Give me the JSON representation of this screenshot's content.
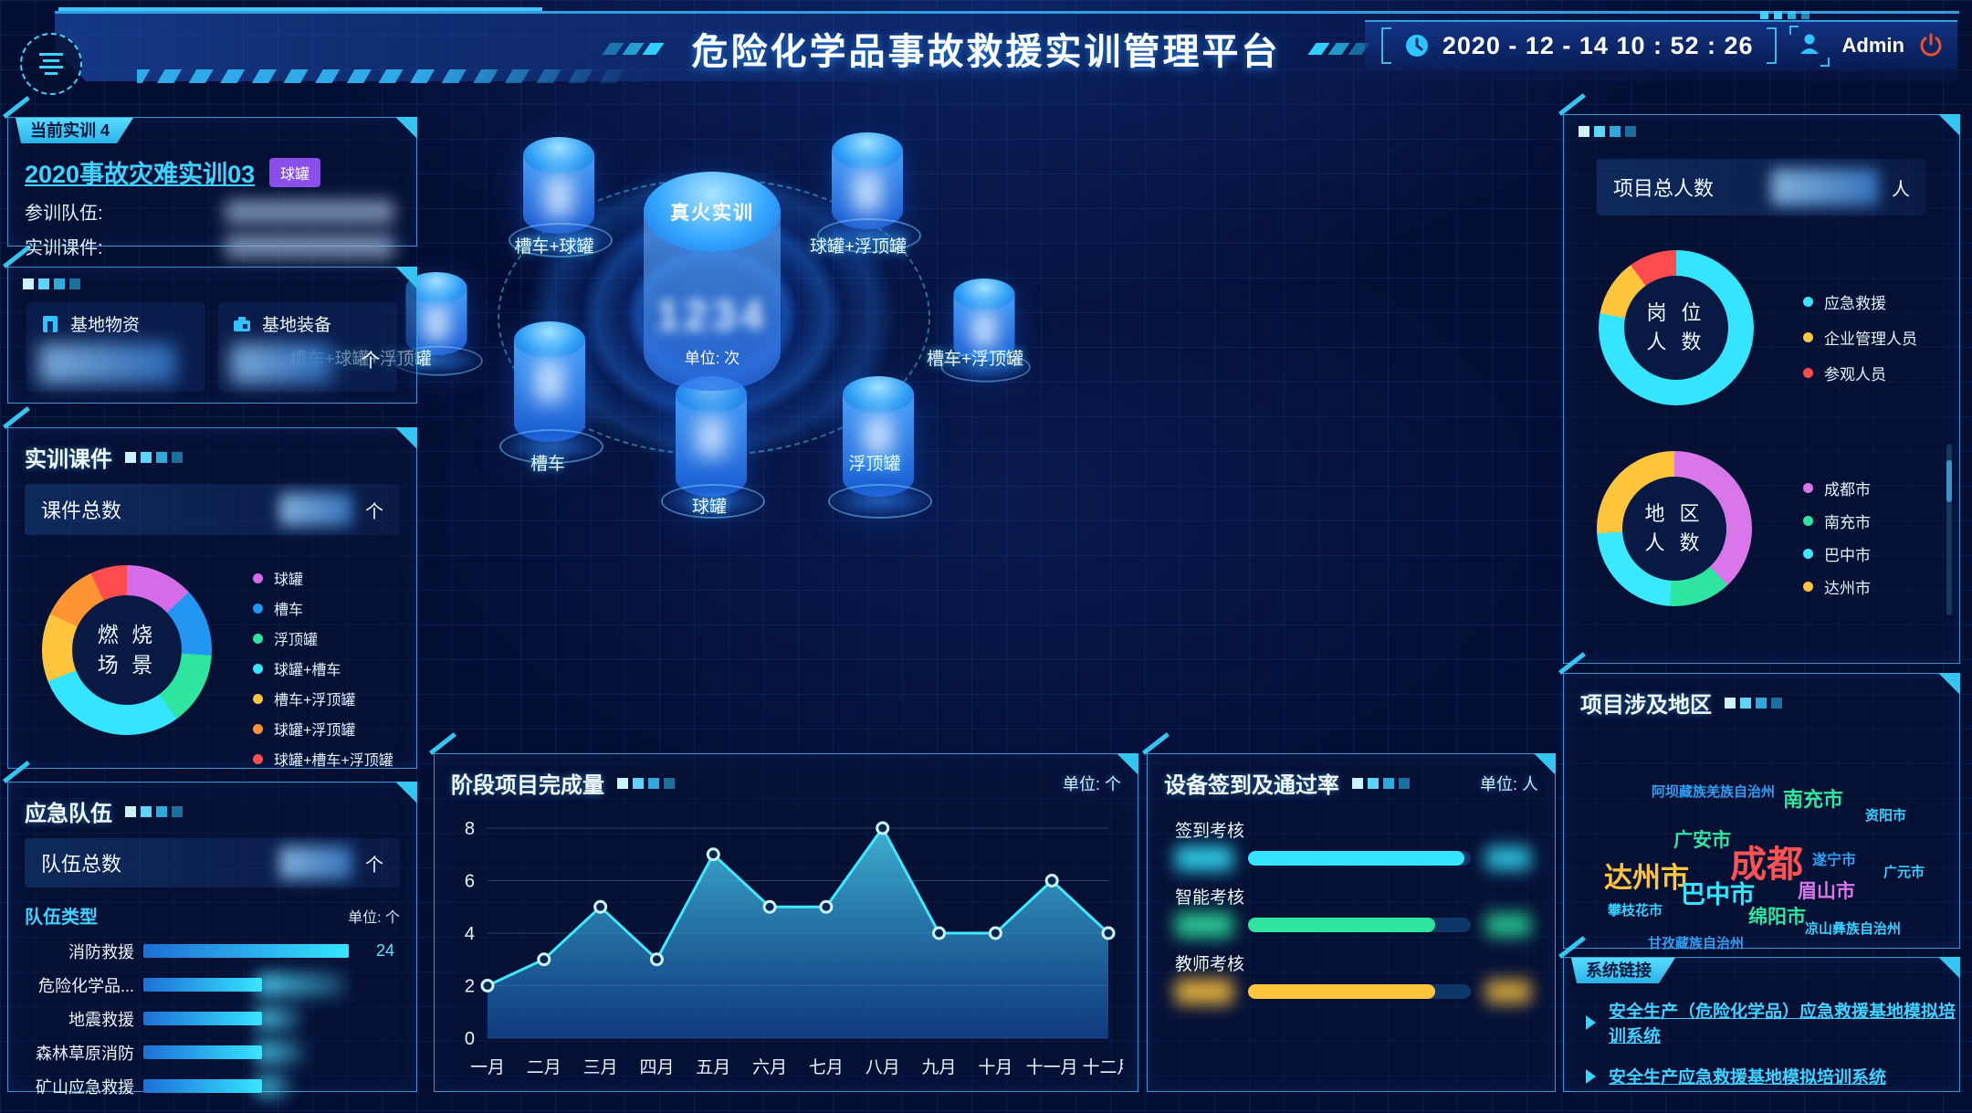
{
  "header": {
    "title": "危险化学品事故救援实训管理平台",
    "datetime": "2020 - 12 - 14  10 : 52 : 26",
    "user": "Admin"
  },
  "current_training": {
    "tab_label": "当前实训 4",
    "name": "2020事故灾难实训03",
    "badge": "球罐",
    "team_label": "参训队伍:",
    "courseware_label": "实训课件:"
  },
  "base_overview": {
    "materials_label": "基地物资",
    "equipment_label": "基地装备",
    "equipment_unit": "个"
  },
  "courseware": {
    "panel_title": "实训课件",
    "total_label": "课件总数",
    "total_unit": "个"
  },
  "teams": {
    "panel_title": "应急队伍",
    "total_label": "队伍总数",
    "total_unit": "个",
    "type_label": "队伍类型",
    "unit_label": "单位: 个"
  },
  "viz": {
    "center_title": "真火实训",
    "center_value": "1234",
    "center_unit": "单位: 次",
    "nodes": [
      "槽车+球罐",
      "球罐+浮顶罐",
      "槽车+球罐+浮顶罐",
      "槽车+浮顶罐",
      "槽车",
      "球罐",
      "浮顶罐"
    ]
  },
  "stage_chart": {
    "panel_title": "阶段项目完成量",
    "unit_label": "单位: 个"
  },
  "device": {
    "panel_title": "设备签到及通过率",
    "unit_label": "单位: 人"
  },
  "people": {
    "total_label": "项目总人数",
    "total_unit": "人"
  },
  "regions_cloud": {
    "panel_title": "项目涉及地区",
    "items": [
      {
        "label": "阿坝藏族羌族自治州",
        "color": "#2f9df0",
        "size": 15
      },
      {
        "label": "南充市",
        "color": "#2ee6a0",
        "size": 22
      },
      {
        "label": "资阳市",
        "color": "#35d0ff",
        "size": 15
      },
      {
        "label": "广安市",
        "color": "#2ee6a0",
        "size": 21
      },
      {
        "label": "成都",
        "color": "#ff5252",
        "size": 40
      },
      {
        "label": "遂宁市",
        "color": "#2f9df0",
        "size": 16
      },
      {
        "label": "广元市",
        "color": "#35d0ff",
        "size": 15
      },
      {
        "label": "达州市",
        "color": "#ffc53d",
        "size": 31
      },
      {
        "label": "巴中市",
        "color": "#35e5ff",
        "size": 27
      },
      {
        "label": "眉山市",
        "color": "#d977ea",
        "size": 21
      },
      {
        "label": "攀枝花市",
        "color": "#35d0ff",
        "size": 15
      },
      {
        "label": "绵阳市",
        "color": "#2ee6a0",
        "size": 21
      },
      {
        "label": "凉山彝族自治州",
        "color": "#35d0ff",
        "size": 15
      },
      {
        "label": "甘孜藏族自治州",
        "color": "#2f9df0",
        "size": 15
      }
    ]
  },
  "links": {
    "tab_label": "系统链接",
    "items": [
      "安全生产（危险化学品）应急救援基地模拟培训系统",
      "安全生产应急救援基地模拟培训系统"
    ]
  },
  "chart_data": [
    {
      "id": "stage_completion",
      "type": "area",
      "title": "阶段项目完成量",
      "unit": "单位: 个",
      "categories": [
        "一月",
        "二月",
        "三月",
        "四月",
        "五月",
        "六月",
        "七月",
        "八月",
        "九月",
        "十月",
        "十一月",
        "十二月"
      ],
      "values": [
        2,
        3,
        5,
        3,
        7,
        5,
        5,
        8,
        4,
        4,
        6,
        4
      ],
      "ylim": [
        0,
        8
      ],
      "yticks": [
        0,
        2,
        4,
        6,
        8
      ],
      "grid": true,
      "line_color": "#3ee8ff"
    },
    {
      "id": "team_type_bars",
      "type": "bar",
      "title": "队伍类型",
      "unit": "单位: 个",
      "categories": [
        "消防救援",
        "危险化学品...",
        "地震救援",
        "森林草原消防",
        "矿山应急救援"
      ],
      "values": [
        24,
        null,
        null,
        null,
        null
      ],
      "values_blurred": [
        false,
        true,
        true,
        true,
        true
      ],
      "bar_pct": [
        92,
        53,
        53,
        53,
        53
      ],
      "blur_tail_pct": [
        0,
        40,
        20,
        22,
        16
      ]
    },
    {
      "id": "device_pass",
      "type": "bar",
      "title": "设备签到及通过率",
      "unit": "单位: 人",
      "rows": [
        {
          "label": "签到考核",
          "pct": 97,
          "color": "#35e5ff",
          "value_blurred": true
        },
        {
          "label": "智能考核",
          "pct": 84,
          "color": "#2ee6a0",
          "value_blurred": true
        },
        {
          "label": "教师考核",
          "pct": 84,
          "color": "#ffc53d",
          "value_blurred": true
        }
      ]
    },
    {
      "id": "burning_scene_donut",
      "type": "pie",
      "center_label": [
        "燃 烧",
        "场 景"
      ],
      "segments": [
        {
          "label": "球罐",
          "value": 13,
          "color": "#d46ce8"
        },
        {
          "label": "槽车",
          "value": 13,
          "color": "#2196f3"
        },
        {
          "label": "浮顶罐",
          "value": 14,
          "color": "#2ee6a0"
        },
        {
          "label": "球罐+槽车",
          "value": 29,
          "color": "#35e5ff"
        },
        {
          "label": "槽车+浮顶罐",
          "value": 13,
          "color": "#ffc53d"
        },
        {
          "label": "球罐+浮顶罐",
          "value": 11,
          "color": "#ff9432"
        },
        {
          "label": "球罐+槽车+浮顶罐",
          "value": 7,
          "color": "#ff4d4f"
        }
      ]
    },
    {
      "id": "post_donut",
      "type": "pie",
      "center_label": [
        "岗 位",
        "人 数"
      ],
      "segments": [
        {
          "label": "应急救援",
          "value": 78,
          "color": "#35e5ff"
        },
        {
          "label": "企业管理人员",
          "value": 12,
          "color": "#ffc53d"
        },
        {
          "label": "参观人员",
          "value": 10,
          "color": "#ff4d4f"
        }
      ]
    },
    {
      "id": "region_donut",
      "type": "pie",
      "center_label": [
        "地 区",
        "人 数"
      ],
      "segments": [
        {
          "label": "成都市",
          "value": 38,
          "color": "#d977ea"
        },
        {
          "label": "南充市",
          "value": 13,
          "color": "#2ee6a0"
        },
        {
          "label": "巴中市",
          "value": 23,
          "color": "#3ae8ff"
        },
        {
          "label": "达州市",
          "value": 26,
          "color": "#ffc53d"
        }
      ]
    }
  ]
}
